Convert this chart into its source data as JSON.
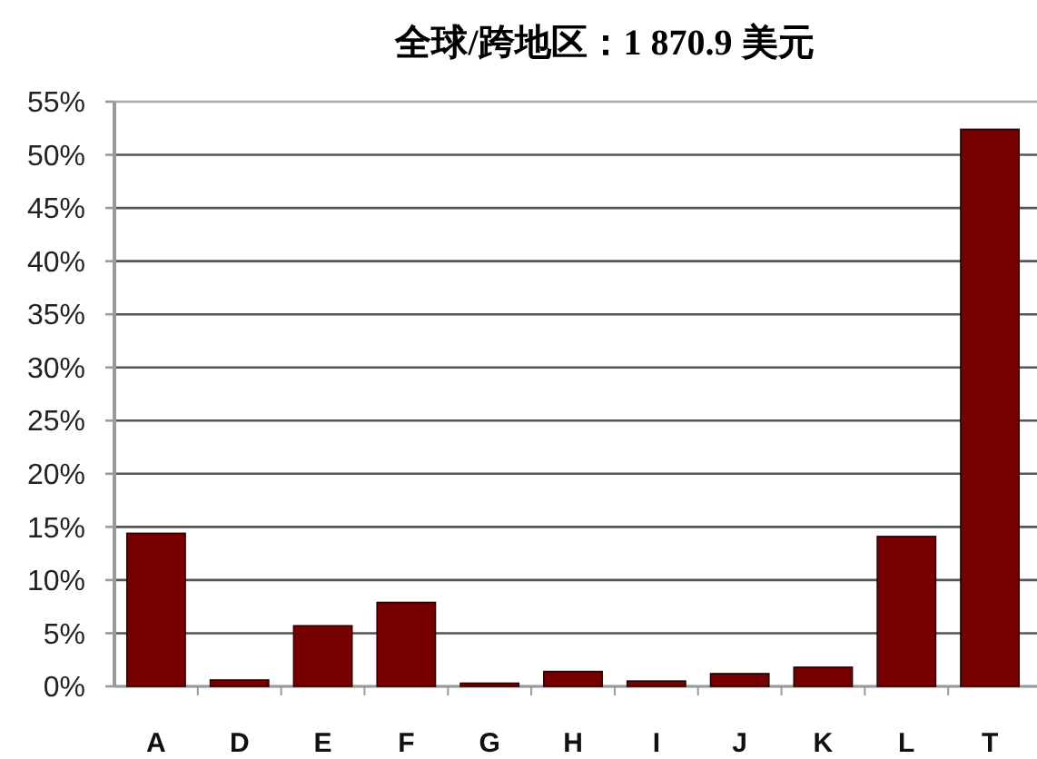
{
  "chart_data": {
    "type": "bar",
    "title": "全球/跨地区：1 870.9 美元",
    "categories": [
      "A",
      "D",
      "E",
      "F",
      "G",
      "H",
      "I",
      "J",
      "K",
      "L",
      "T"
    ],
    "values": [
      14.4,
      0.6,
      5.7,
      7.9,
      0.3,
      1.4,
      0.5,
      1.2,
      1.8,
      14.1,
      52.4
    ],
    "color": "#760000",
    "ylim": [
      0,
      55
    ],
    "yticks": [
      {
        "value": 0,
        "label": "0%"
      },
      {
        "value": 5,
        "label": "5%"
      },
      {
        "value": 10,
        "label": "10%"
      },
      {
        "value": 15,
        "label": "15%"
      },
      {
        "value": 20,
        "label": "20%"
      },
      {
        "value": 25,
        "label": "25%"
      },
      {
        "value": 30,
        "label": "30%"
      },
      {
        "value": 35,
        "label": "35%"
      },
      {
        "value": 40,
        "label": "40%"
      },
      {
        "value": 45,
        "label": "45%"
      },
      {
        "value": 50,
        "label": "50%"
      },
      {
        "value": 55,
        "label": "55%"
      }
    ],
    "grid": "y"
  }
}
